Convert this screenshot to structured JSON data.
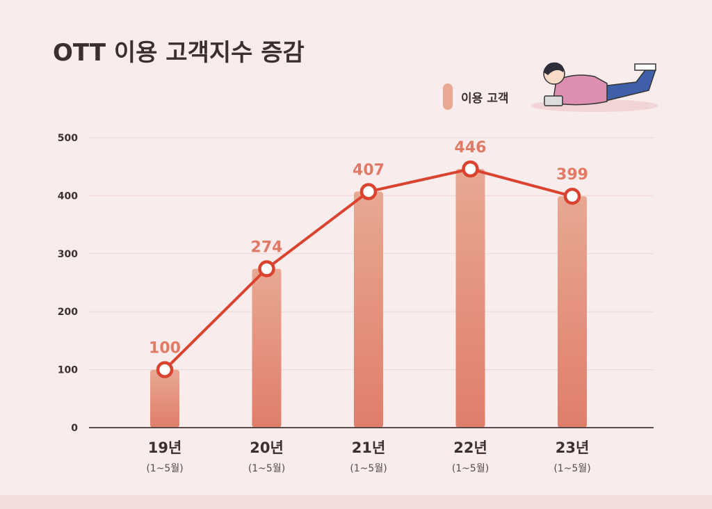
{
  "chart_data": {
    "type": "bar+line",
    "title": "OTT 이용 고객지수 증감",
    "categories": [
      "19년",
      "20년",
      "21년",
      "22년",
      "23년"
    ],
    "sublabels": [
      "(1~5월)",
      "(1~5월)",
      "(1~5월)",
      "(1~5월)",
      "(1~5월)"
    ],
    "series": [
      {
        "name": "이용 고객",
        "values": [
          100,
          274,
          407,
          446,
          399
        ]
      }
    ],
    "ylim": [
      0,
      500
    ],
    "yticks": [
      0,
      100,
      200,
      300,
      400,
      500
    ],
    "grid": true,
    "legend": "top-right",
    "colors": {
      "bar": "#e8a892",
      "bar_bottom": "#df7e6a",
      "line": "#d9432f",
      "label": "#e07a66",
      "text": "#3b2f2f"
    }
  }
}
